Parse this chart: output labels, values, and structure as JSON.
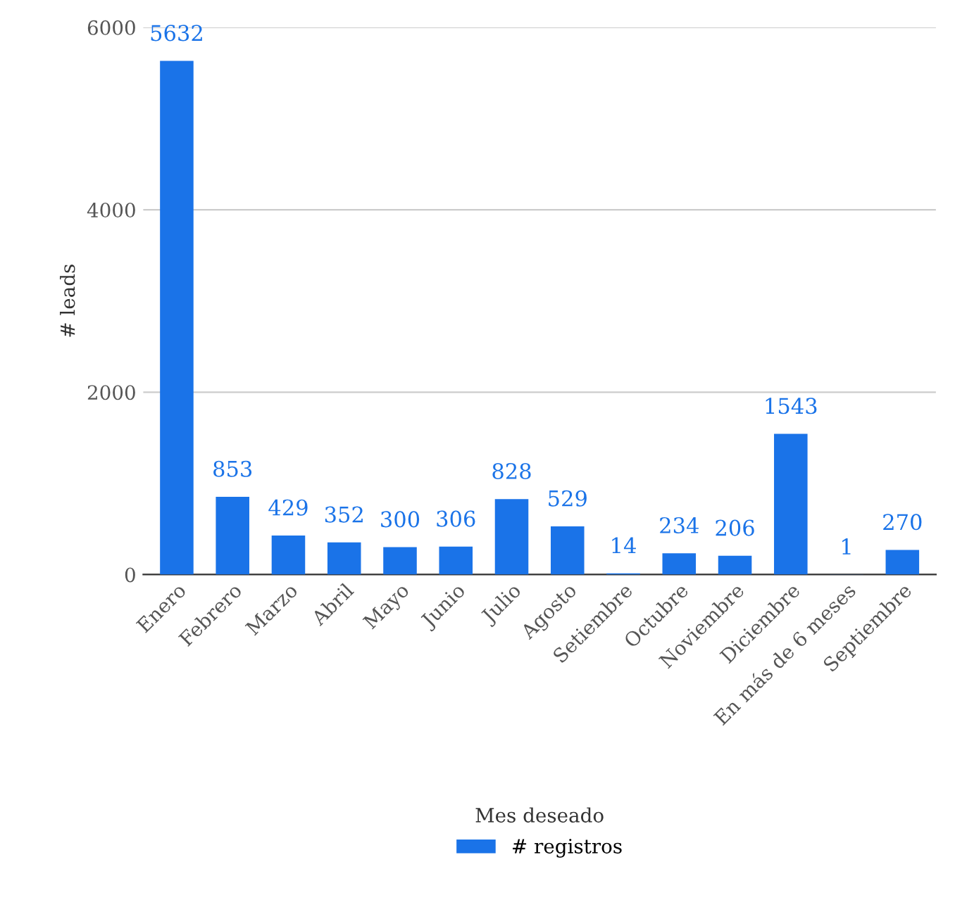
{
  "chart_data": {
    "type": "bar",
    "xlabel": "Mes deseado",
    "ylabel": "# leads",
    "categories": [
      "Enero",
      "Febrero",
      "Marzo",
      "Abril",
      "Mayo",
      "Junio",
      "Julio",
      "Agosto",
      "Setiembre",
      "Octubre",
      "Noviembre",
      "Diciembre",
      "En más de 6 meses",
      "Septiembre"
    ],
    "series": [
      {
        "name": "# registros",
        "color": "#1a73e8",
        "values": [
          5632,
          853,
          429,
          352,
          300,
          306,
          828,
          529,
          14,
          234,
          206,
          1543,
          1,
          270
        ]
      }
    ],
    "ylim": [
      0,
      6000
    ],
    "yticks": [
      0,
      2000,
      4000,
      6000
    ],
    "grid": "y",
    "legend": "bottom",
    "data_labels": true
  }
}
